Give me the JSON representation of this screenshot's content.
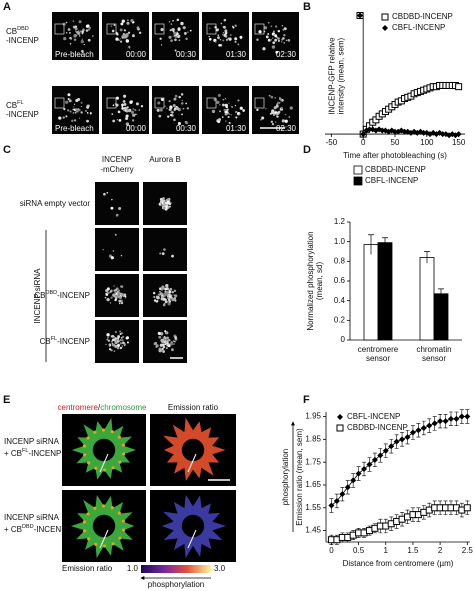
{
  "panel_labels": [
    "A",
    "B",
    "C",
    "D",
    "E",
    "F"
  ],
  "panel_a": {
    "rows": [
      {
        "base": "CB",
        "sup": "DBD",
        "rest": "-INCENP"
      },
      {
        "base": "CB",
        "sup": "FL",
        "rest": "-INCENP"
      }
    ],
    "times": [
      "Pre-bleach",
      "00:00",
      "00:30",
      "01:30",
      "02:30"
    ]
  },
  "panel_c": {
    "columns": [
      [
        "INCENP",
        "-mCherry"
      ],
      [
        "Aurora B"
      ]
    ],
    "first_row": "siRNA empty vector",
    "group": "INCENP siRNA",
    "rows": [
      {
        "base": "CB",
        "sup": "DBD",
        "rest": "-INCENP"
      },
      {
        "base": "CB",
        "sup": "FL",
        "rest": "-INCENP"
      }
    ]
  },
  "panel_e": {
    "header": {
      "centromere": "centromere",
      "slash": "/",
      "chromosome": "chromosome",
      "ratio": "Emission ratio"
    },
    "rows": [
      {
        "line1": "INCENP siRNA",
        "base": "+ CB",
        "sup": "FL",
        "rest": "-INCENP"
      },
      {
        "line1": "INCENP siRNA",
        "base": "+ CB",
        "sup": "DBD",
        "rest": "-INCENP"
      }
    ],
    "colorbar": {
      "title": "Emission ratio",
      "min": "1.0",
      "max": "3.0",
      "arrow": "phosphorylation"
    }
  },
  "chart_data": [
    {
      "type": "line",
      "line": false,
      "xlabel": "Time after photobleaching (s)",
      "ylabel": [
        "INCENP-GFP relative",
        "intensity (mean, sem)"
      ],
      "x": [
        -5,
        0,
        5,
        10,
        15,
        20,
        25,
        30,
        35,
        40,
        45,
        50,
        55,
        60,
        65,
        70,
        75,
        80,
        85,
        90,
        95,
        100,
        105,
        110,
        115,
        120,
        125,
        130,
        135,
        140,
        145,
        150
      ],
      "series": [
        {
          "name": "CBDBD-INCENP",
          "color": "#000000",
          "marker": "square-open",
          "values": [
            1.0,
            0.0,
            0.04,
            0.07,
            0.1,
            0.12,
            0.15,
            0.17,
            0.19,
            0.21,
            0.23,
            0.25,
            0.27,
            0.28,
            0.3,
            0.31,
            0.32,
            0.34,
            0.35,
            0.36,
            0.37,
            0.38,
            0.39,
            0.4,
            0.4,
            0.41,
            0.41,
            0.41,
            0.41,
            0.41,
            0.41,
            0.4
          ]
        },
        {
          "name": "CBFL-INCENP",
          "color": "#000000",
          "marker": "diamond",
          "values": [
            1.0,
            0.0,
            0.03,
            0.04,
            0.04,
            0.03,
            0.04,
            0.03,
            0.03,
            0.02,
            0.03,
            0.02,
            0.02,
            0.03,
            0.02,
            0.02,
            0.01,
            0.02,
            0.01,
            0.02,
            0.01,
            0.01,
            0.0,
            0.01,
            0.0,
            0.01,
            0.0,
            0.0,
            -0.01,
            0.0,
            -0.01,
            0.0
          ]
        }
      ],
      "xlim": [
        -60,
        160
      ],
      "xticks": [
        -50,
        0,
        50,
        100,
        150
      ],
      "ylim": [
        -0.05,
        1.03
      ]
    },
    {
      "type": "bar",
      "ylabel": [
        "Normalized phosphorylation",
        "(mean, sd)"
      ],
      "categories": [
        "centromere sensor",
        "chromatin sensor"
      ],
      "series": [
        {
          "name": "CBDBD-INCENP",
          "color": "#ffffff",
          "values": [
            0.97,
            0.84
          ],
          "errors": [
            0.1,
            0.06
          ]
        },
        {
          "name": "CBFL-INCENP",
          "color": "#000000",
          "values": [
            0.99,
            0.47
          ],
          "errors": [
            0.05,
            0.05
          ]
        }
      ],
      "ylim": [
        0,
        1.2
      ],
      "yticks": [
        0,
        0.2,
        0.4,
        0.6,
        0.8,
        {
          "value": 1,
          "label": "1.0"
        },
        1.2
      ]
    },
    {
      "type": "line",
      "line": true,
      "xlabel": "Distance from centromere (µm)",
      "ylabel": [
        "Emission ratio (mean, sem)"
      ],
      "side_label": "phosphorylation",
      "x": [
        0,
        0.1,
        0.2,
        0.3,
        0.4,
        0.5,
        0.6,
        0.7,
        0.8,
        0.9,
        1,
        1.1,
        1.2,
        1.3,
        1.4,
        1.5,
        1.6,
        1.7,
        1.8,
        1.9,
        2,
        2.1,
        2.2,
        2.3,
        2.4,
        2.5
      ],
      "series": [
        {
          "name": "CBFL-INCENP",
          "color": "#000000",
          "marker": "diamond",
          "values": [
            1.56,
            1.58,
            1.61,
            1.64,
            1.67,
            1.7,
            1.72,
            1.74,
            1.76,
            1.78,
            1.8,
            1.82,
            1.84,
            1.85,
            1.86,
            1.88,
            1.89,
            1.9,
            1.91,
            1.92,
            1.93,
            1.93,
            1.94,
            1.94,
            1.95,
            1.95
          ],
          "errors": [
            0.03,
            0.03,
            0.03,
            0.03,
            0.03,
            0.03,
            0.03,
            0.03,
            0.03,
            0.03,
            0.03,
            0.03,
            0.03,
            0.03,
            0.03,
            0.03,
            0.03,
            0.03,
            0.03,
            0.03,
            0.03,
            0.03,
            0.03,
            0.03,
            0.03,
            0.03
          ]
        },
        {
          "name": "CBDBD-INCENP",
          "color": "#000000",
          "marker": "square-open",
          "values": [
            1.41,
            1.41,
            1.42,
            1.42,
            1.43,
            1.44,
            1.44,
            1.45,
            1.46,
            1.47,
            1.47,
            1.48,
            1.49,
            1.5,
            1.51,
            1.52,
            1.52,
            1.53,
            1.54,
            1.55,
            1.55,
            1.55,
            1.55,
            1.55,
            1.54,
            1.55
          ],
          "errors": [
            0.02,
            0.02,
            0.02,
            0.02,
            0.02,
            0.02,
            0.02,
            0.02,
            0.02,
            0.03,
            0.03,
            0.03,
            0.03,
            0.03,
            0.03,
            0.03,
            0.03,
            0.03,
            0.03,
            0.03,
            0.03,
            0.03,
            0.03,
            0.03,
            0.03,
            0.03
          ]
        }
      ],
      "xlim": [
        -0.1,
        2.55
      ],
      "xticks": [
        0,
        0.5,
        1,
        1.5,
        2,
        2.5
      ],
      "ylim": [
        1.4,
        1.97
      ],
      "yticks": [
        1.45,
        1.55,
        1.65,
        1.75,
        1.85,
        1.95
      ]
    }
  ]
}
